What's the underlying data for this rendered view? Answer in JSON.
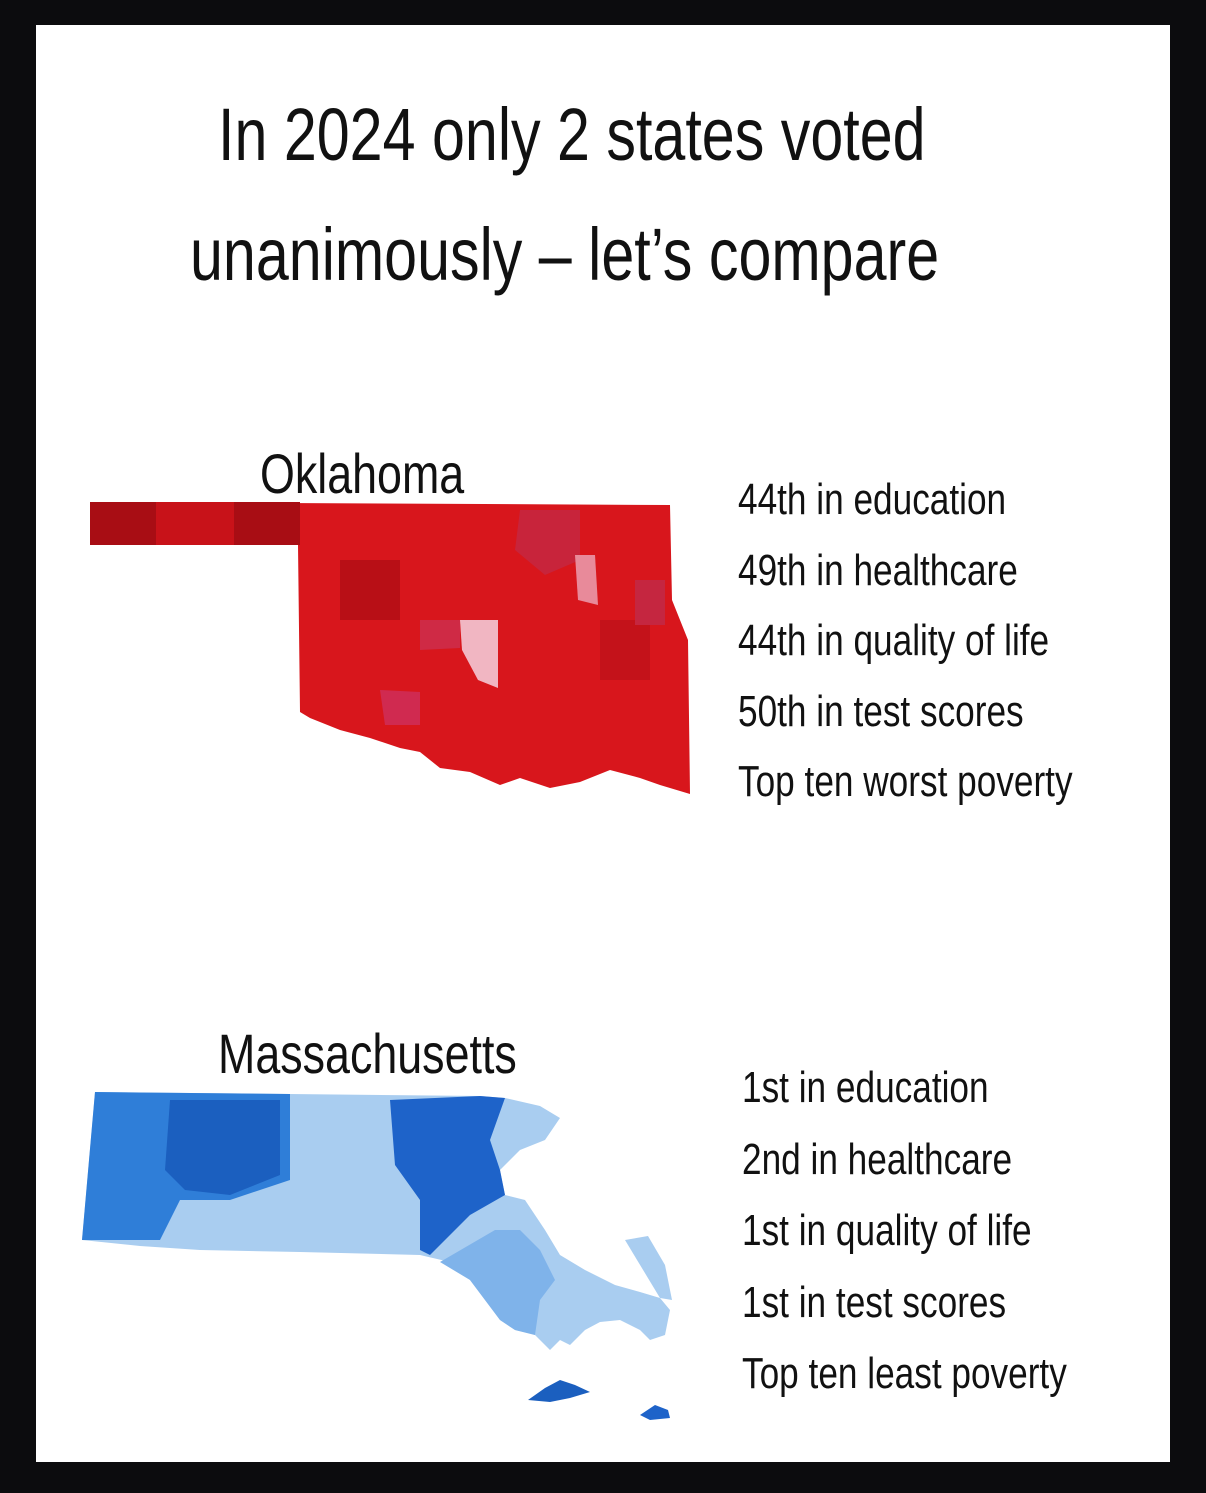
{
  "title": {
    "lines": [
      "In 2024 only 2 states voted",
      "unanimously – let’s compare"
    ]
  },
  "states": [
    {
      "name": "Oklahoma",
      "facts": [
        "44th in education",
        "49th in healthcare",
        "44th in quality of life",
        "50th in test scores",
        "Top ten worst poverty"
      ]
    },
    {
      "name": "Massachusetts",
      "facts": [
        "1st in education",
        "2nd in healthcare",
        "1st in quality of life",
        "1st in test scores",
        "Top ten least poverty"
      ]
    }
  ]
}
